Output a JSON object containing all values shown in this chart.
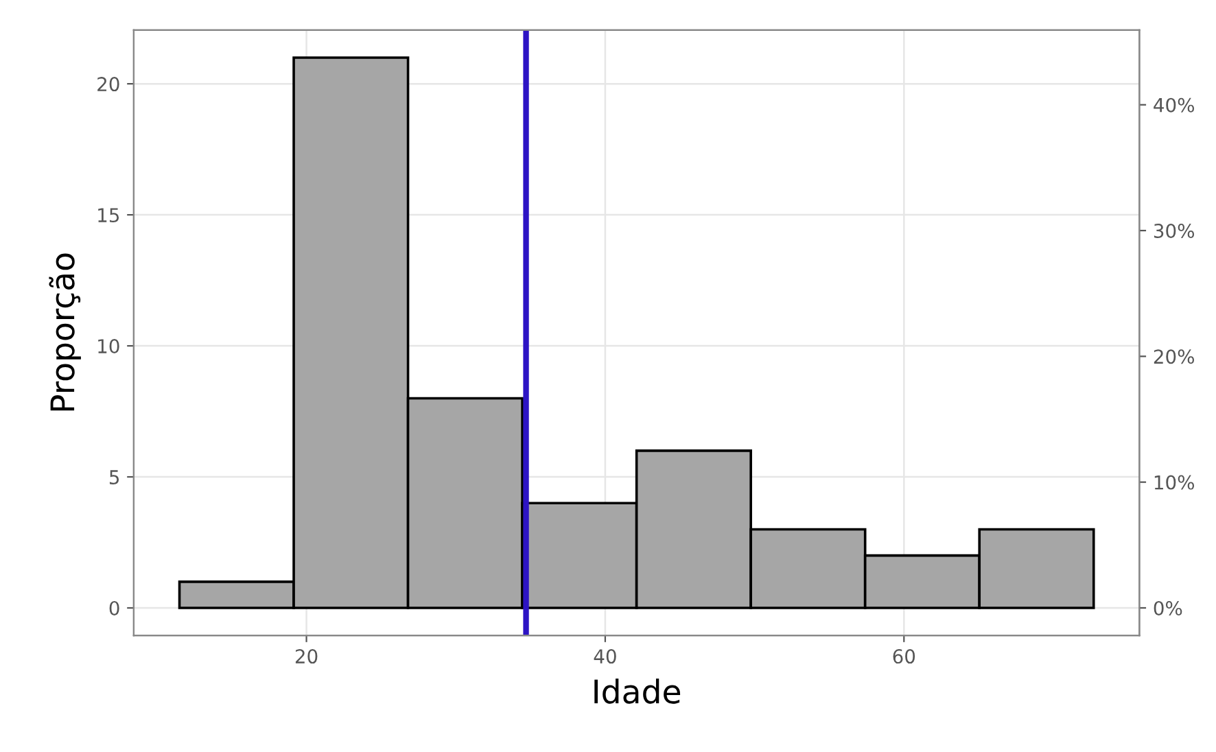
{
  "chart_data": {
    "type": "histogram",
    "xlabel": "Idade",
    "ylabel": "Proporção",
    "bins": [
      11.5,
      19.15,
      26.8,
      34.45,
      42.1,
      49.75,
      57.4,
      65.05,
      72.7
    ],
    "values": [
      1,
      21,
      8,
      4,
      6,
      3,
      2,
      3
    ],
    "color": "#a6a6a6",
    "xlim": [
      8.44,
      75.76
    ],
    "xticks": [
      20,
      40,
      60
    ],
    "ylim": [
      -1.05,
      22.05
    ],
    "yticks": [
      0,
      5,
      10,
      15,
      20
    ],
    "y2lim": [
      -2.19,
      45.94
    ],
    "y2ticks": [
      {
        "value": 0,
        "label": "0%"
      },
      {
        "value": 10,
        "label": "10%"
      },
      {
        "value": 20,
        "label": "20%"
      },
      {
        "value": 30,
        "label": "30%"
      },
      {
        "value": 40,
        "label": "40%"
      }
    ],
    "ref_lines": [
      {
        "axis": "x",
        "value": 34.7,
        "label": null,
        "color": "#2d14c4"
      }
    ],
    "grid": true
  }
}
